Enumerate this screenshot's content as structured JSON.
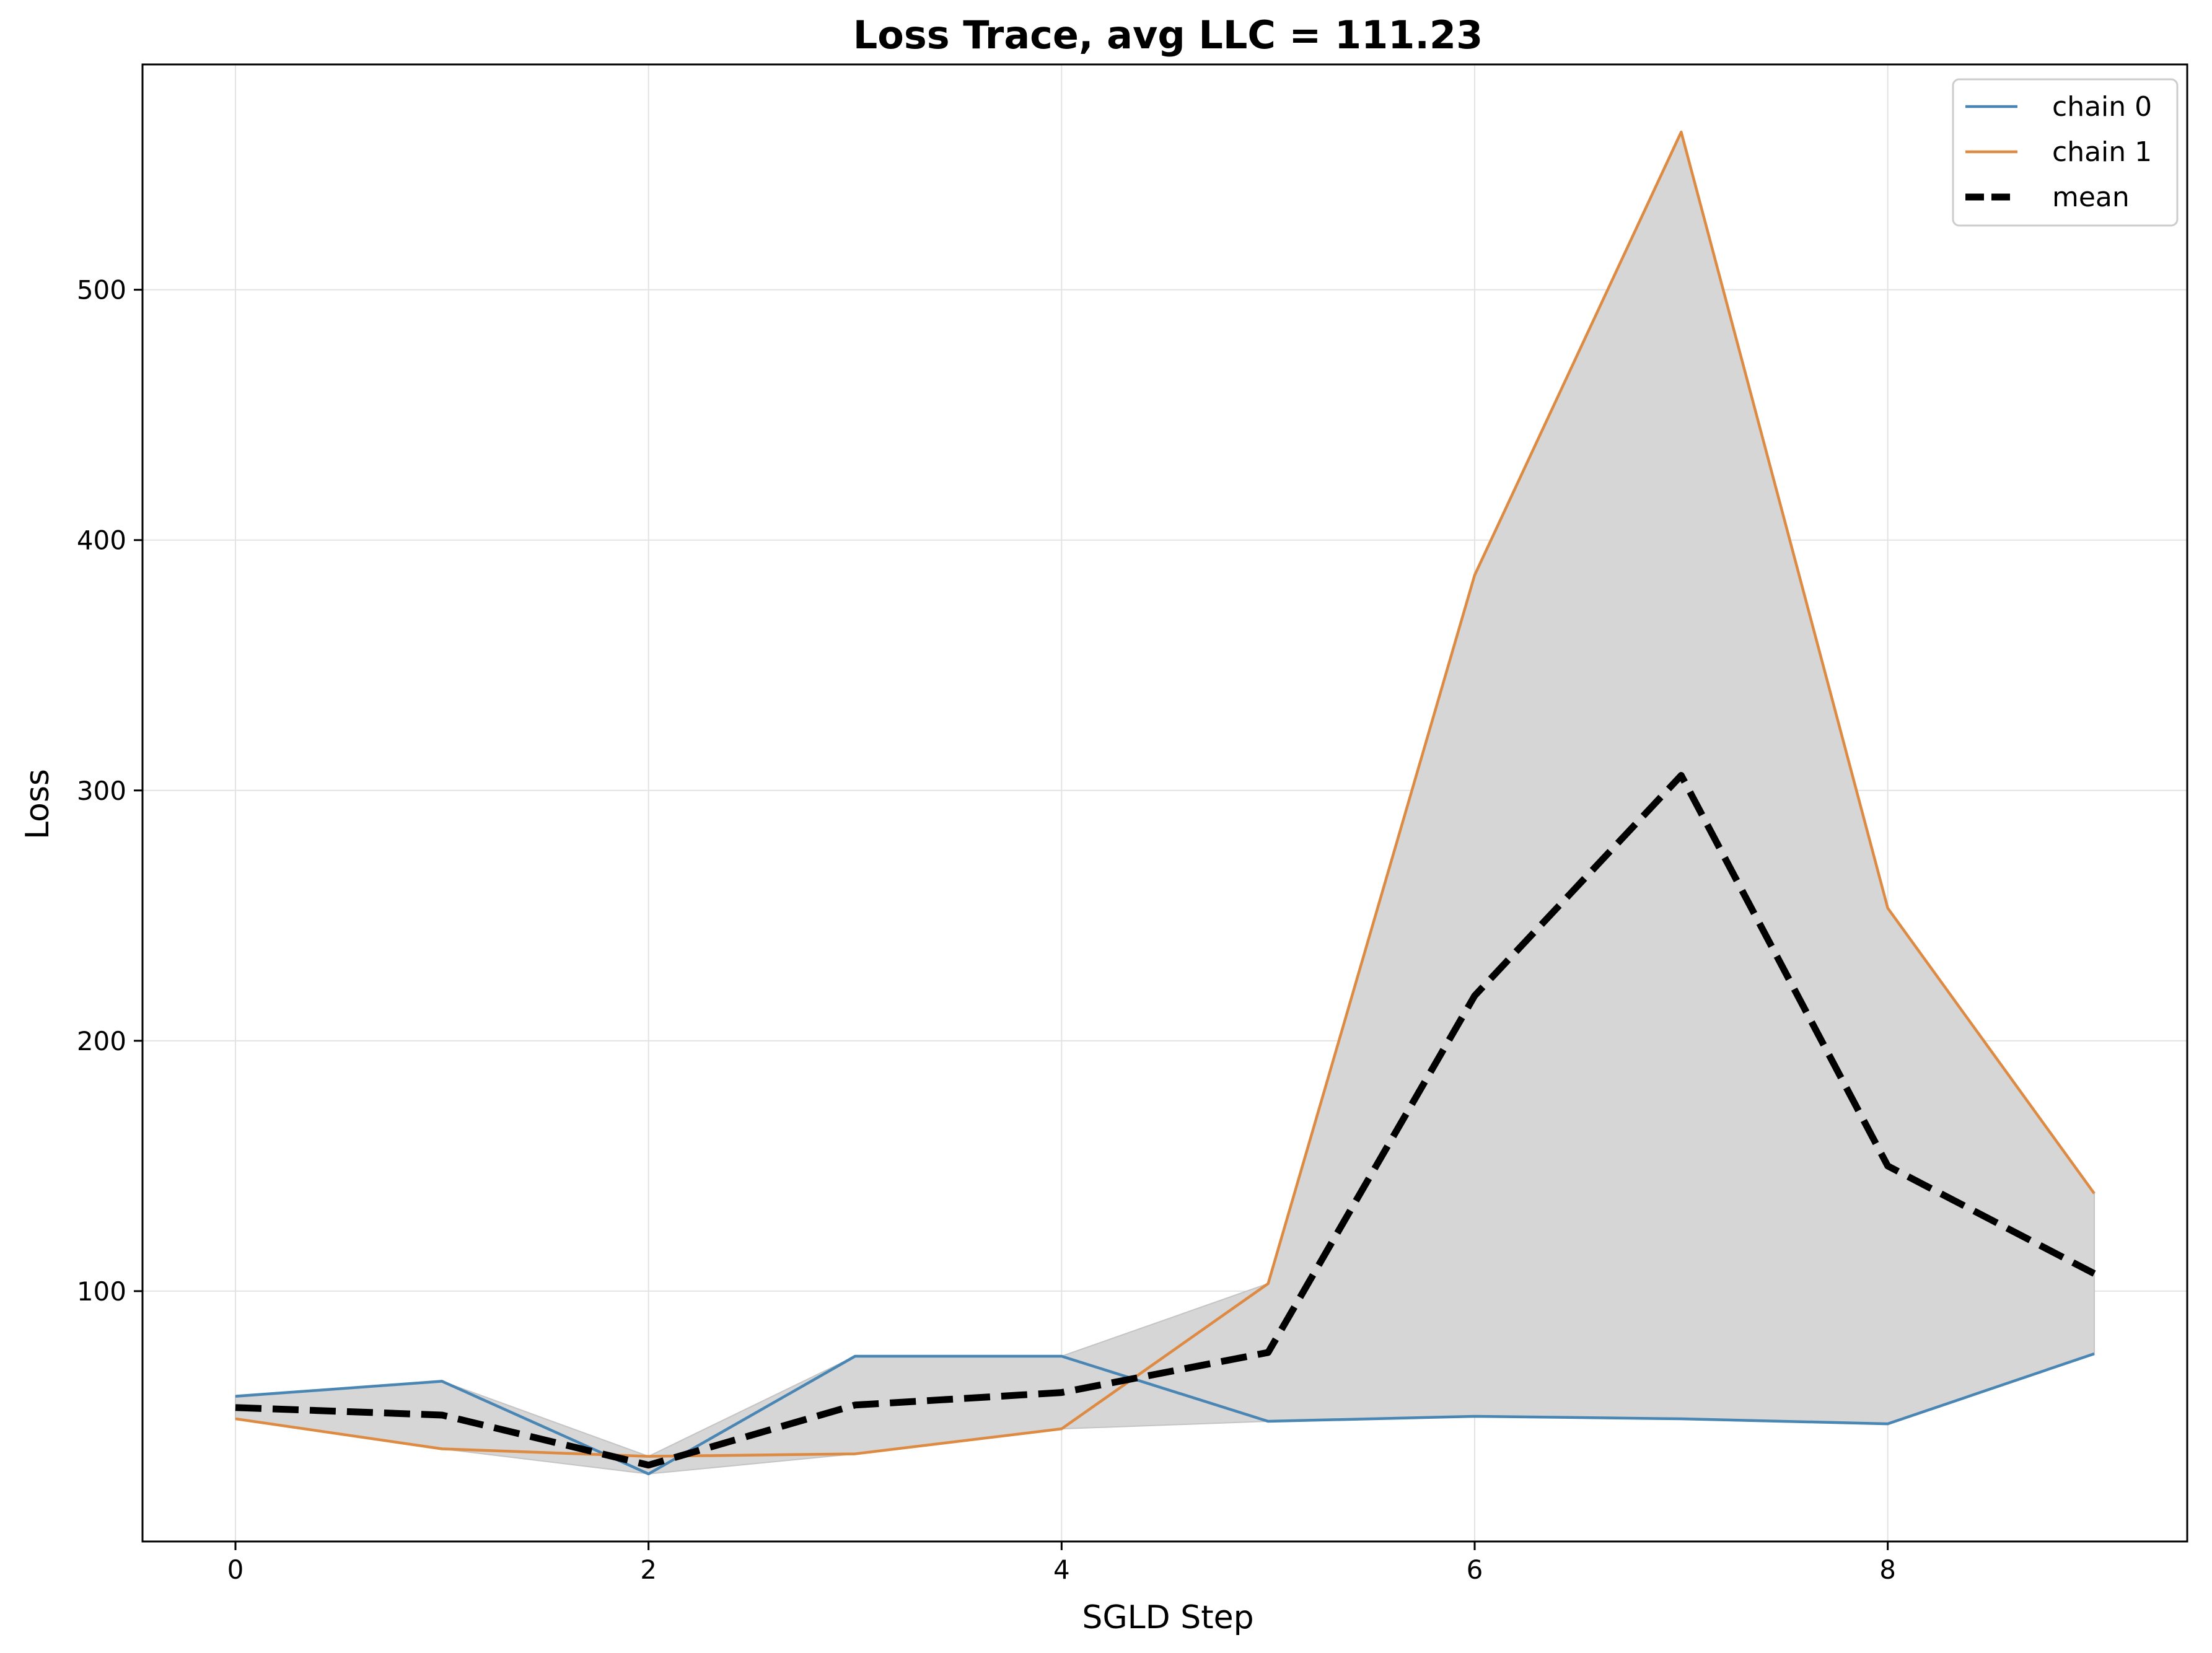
{
  "chart_data": {
    "type": "line",
    "title": "Loss Trace, avg LLC = 111.23",
    "xlabel": "SGLD Step",
    "ylabel": "Loss",
    "x": [
      0,
      1,
      2,
      3,
      4,
      5,
      6,
      7,
      8,
      9
    ],
    "xlim": [
      -0.45,
      9.45
    ],
    "ylim": [
      0,
      590
    ],
    "xticks": [
      0,
      2,
      4,
      6,
      8
    ],
    "yticks": [
      100,
      200,
      300,
      400,
      500
    ],
    "grid": true,
    "legend_position": "top-right",
    "series": [
      {
        "name": "chain 0",
        "color": "#4a86b4",
        "style": "solid",
        "values": [
          58,
          64,
          27,
          74,
          74,
          48,
          50,
          49,
          47,
          75
        ]
      },
      {
        "name": "chain 1",
        "color": "#dd8a43",
        "style": "solid",
        "values": [
          49,
          37,
          34,
          35,
          45,
          103,
          386,
          563,
          253,
          139
        ]
      },
      {
        "name": "mean",
        "color": "#000000",
        "style": "dashed",
        "values": [
          53.5,
          50.5,
          30.5,
          54.5,
          59.5,
          75.5,
          218,
          306,
          150,
          107
        ]
      }
    ],
    "band": {
      "lower_series": "min",
      "upper_series": "max",
      "color": "#d6d6d6"
    }
  }
}
